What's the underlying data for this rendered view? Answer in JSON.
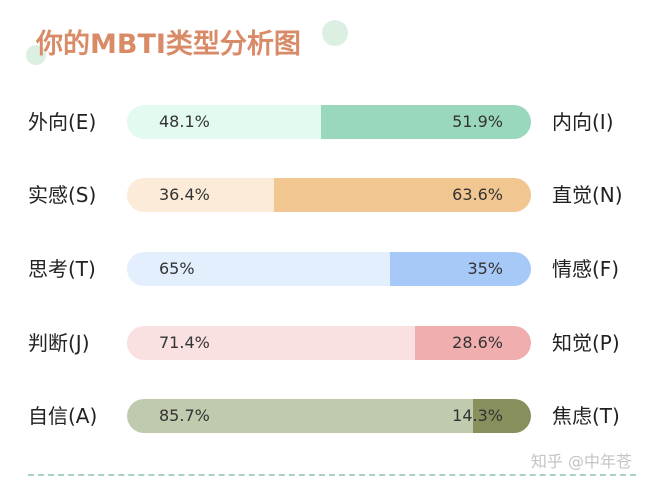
{
  "title": "你的MBTI类型分析图",
  "watermark": "知乎 @中年苍",
  "rows": [
    {
      "left_label": "外向(E)",
      "right_label": "内向(I)",
      "left_pct": "48.1%",
      "right_pct": "51.9%",
      "left_value": 48.1,
      "right_value": 51.9,
      "light_color": "#e2faf0",
      "dark_color": "#9ad8bd"
    },
    {
      "left_label": "实感(S)",
      "right_label": "直觉(N)",
      "left_pct": "36.4%",
      "right_pct": "63.6%",
      "left_value": 36.4,
      "right_value": 63.6,
      "light_color": "#fdebd9",
      "dark_color": "#f1c690"
    },
    {
      "left_label": "思考(T)",
      "right_label": "情感(F)",
      "left_pct": "65%",
      "right_pct": "35%",
      "left_value": 65,
      "right_value": 35,
      "light_color": "#e3effd",
      "dark_color": "#a6c9f7"
    },
    {
      "left_label": "判断(J)",
      "right_label": "知觉(P)",
      "left_pct": "71.4%",
      "right_pct": "28.6%",
      "left_value": 71.4,
      "right_value": 28.6,
      "light_color": "#fae1e1",
      "dark_color": "#f0aeae"
    },
    {
      "left_label": "自信(A)",
      "right_label": "焦虑(T)",
      "left_pct": "85.7%",
      "right_pct": "14.3%",
      "left_value": 85.7,
      "right_value": 14.3,
      "light_color": "#c0caae",
      "dark_color": "#878f5d"
    }
  ],
  "chart_data": {
    "type": "bar",
    "orientation": "horizontal-stacked-100",
    "title": "你的MBTI类型分析图",
    "categories": [
      "外向(E) / 内向(I)",
      "实感(S) / 直觉(N)",
      "思考(T) / 情感(F)",
      "判断(J) / 知觉(P)",
      "自信(A) / 焦虑(T)"
    ],
    "series": [
      {
        "name": "left trait",
        "labels": [
          "外向(E)",
          "实感(S)",
          "思考(T)",
          "判断(J)",
          "自信(A)"
        ],
        "values": [
          48.1,
          36.4,
          65,
          71.4,
          85.7
        ]
      },
      {
        "name": "right trait",
        "labels": [
          "内向(I)",
          "直觉(N)",
          "情感(F)",
          "知觉(P)",
          "焦虑(T)"
        ],
        "values": [
          51.9,
          63.6,
          35,
          28.6,
          14.3
        ]
      }
    ],
    "xlabel": "",
    "ylabel": "",
    "xlim": [
      0,
      100
    ],
    "grid": false,
    "legend": "none"
  }
}
